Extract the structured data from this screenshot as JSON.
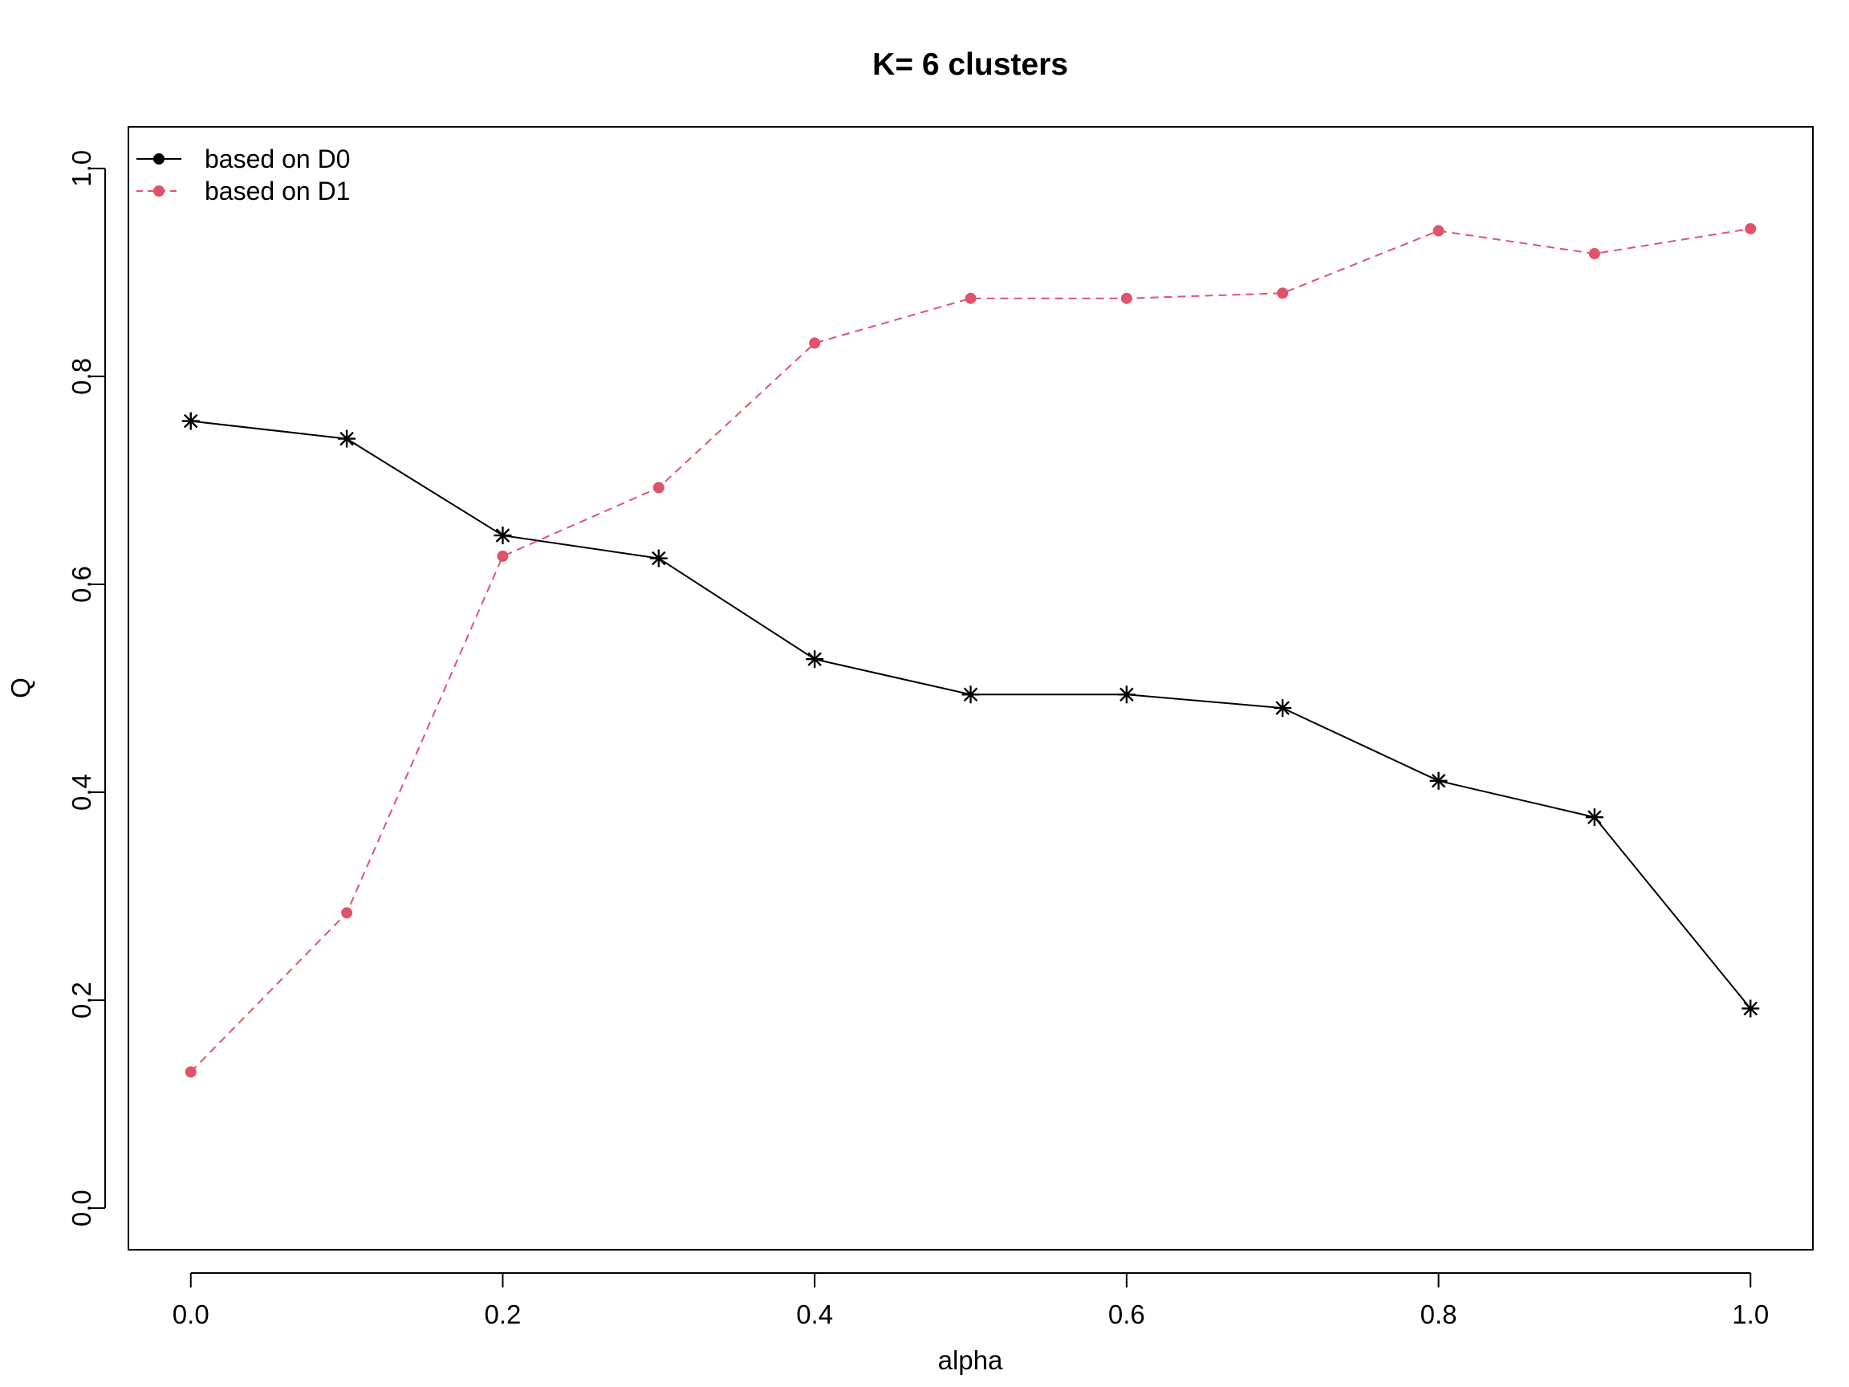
{
  "chart_data": {
    "type": "line",
    "title": "K= 6 clusters",
    "xlabel": "alpha",
    "ylabel": "Q",
    "x": [
      0.0,
      0.1,
      0.2,
      0.3,
      0.4,
      0.5,
      0.6,
      0.7,
      0.8,
      0.9,
      1.0
    ],
    "xlim": [
      -0.04,
      1.04
    ],
    "ylim": [
      -0.04,
      1.04
    ],
    "xticks": [
      "0.0",
      "0.2",
      "0.4",
      "0.6",
      "0.8",
      "1.0"
    ],
    "yticks": [
      "0.0",
      "0.2",
      "0.4",
      "0.6",
      "0.8",
      "1.0"
    ],
    "grid": false,
    "legend_position": "top-left",
    "series": [
      {
        "name": "based on D0",
        "color": "#000000",
        "line": "solid",
        "marker": "asterisk",
        "legend_marker": "filled-circle",
        "values": [
          0.757,
          0.74,
          0.647,
          0.625,
          0.528,
          0.494,
          0.494,
          0.481,
          0.411,
          0.376,
          0.192
        ]
      },
      {
        "name": "based on D1",
        "color": "#DF536B",
        "line": "dashed",
        "marker": "filled-circle",
        "legend_marker": "filled-circle",
        "values": [
          0.131,
          0.284,
          0.627,
          0.693,
          0.832,
          0.875,
          0.875,
          0.88,
          0.94,
          0.918,
          0.942
        ]
      }
    ]
  }
}
